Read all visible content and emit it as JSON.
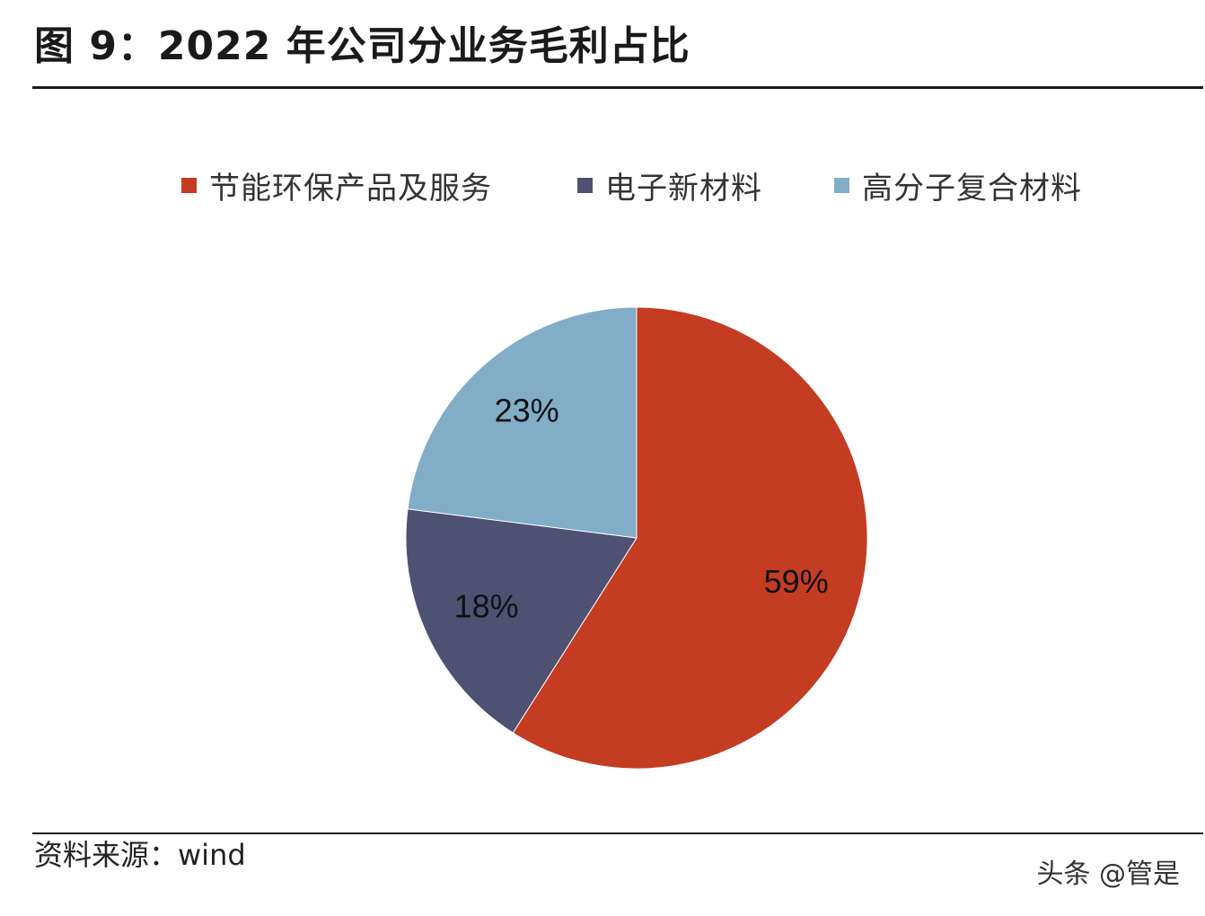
{
  "figure": {
    "title": "图 9：2022 年公司分业务毛利占比",
    "source": "资料来源：wind",
    "watermark": "头条 @管是"
  },
  "chart_data": {
    "type": "pie",
    "title": "",
    "legend_position": "top",
    "labels": [
      "节能环保产品及服务",
      "电子新材料",
      "高分子复合材料"
    ],
    "values": [
      59,
      18,
      23
    ],
    "value_labels": [
      "59%",
      "18%",
      "23%"
    ],
    "colors": [
      "#c43c21",
      "#4f5173",
      "#81adc7"
    ],
    "start_angle_deg": 0,
    "direction": "clockwise"
  }
}
